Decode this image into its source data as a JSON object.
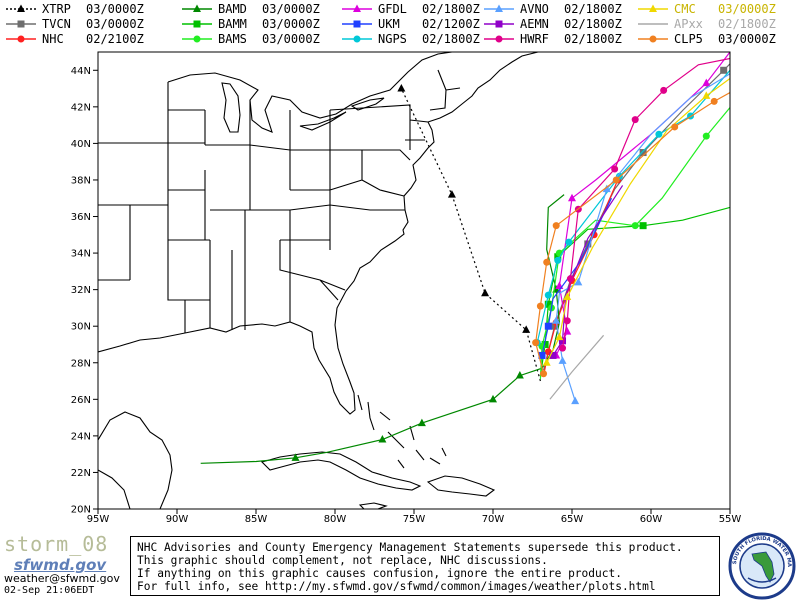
{
  "legend": [
    {
      "name": "XTRP",
      "date": "03/0000Z",
      "color": "#000000",
      "marker": "tri",
      "dash": true
    },
    {
      "name": "TVCN",
      "date": "03/0000Z",
      "color": "#6e6e6e",
      "marker": "square",
      "dash": false
    },
    {
      "name": "NHC",
      "date": "02/2100Z",
      "color": "#ff2020",
      "marker": "circle",
      "dash": false
    },
    {
      "name": "BAMD",
      "date": "03/0000Z",
      "color": "#008800",
      "marker": "tri",
      "dash": false
    },
    {
      "name": "BAMM",
      "date": "03/0000Z",
      "color": "#00c000",
      "marker": "square",
      "dash": false
    },
    {
      "name": "BAMS",
      "date": "03/0000Z",
      "color": "#22ee22",
      "marker": "circle",
      "dash": false
    },
    {
      "name": "GFDL",
      "date": "02/1800Z",
      "color": "#dd00dd",
      "marker": "tri",
      "dash": false
    },
    {
      "name": "UKM",
      "date": "02/1200Z",
      "color": "#2040ff",
      "marker": "square",
      "dash": false
    },
    {
      "name": "NGPS",
      "date": "02/1800Z",
      "color": "#00c8d8",
      "marker": "circle",
      "dash": false
    },
    {
      "name": "AVNO",
      "date": "02/1800Z",
      "color": "#5aa0ff",
      "marker": "tri",
      "dash": false
    },
    {
      "name": "AEMN",
      "date": "02/1800Z",
      "color": "#9000c8",
      "marker": "square",
      "dash": false
    },
    {
      "name": "HWRF",
      "date": "02/1800Z",
      "color": "#e0008a",
      "marker": "circle",
      "dash": false
    },
    {
      "name": "CMC",
      "date": "03/0000Z",
      "color": "#f0d800",
      "marker": "tri",
      "dash": false
    },
    {
      "name": "APxx",
      "date": "02/1800Z",
      "color": "#a8a8a8",
      "marker": "none",
      "dash": false
    },
    {
      "name": "CLP5",
      "date": "03/0000Z",
      "color": "#f08020",
      "marker": "circle",
      "dash": false
    }
  ],
  "axes": {
    "lon_labels": [
      "95W",
      "90W",
      "85W",
      "80W",
      "75W",
      "70W",
      "65W",
      "60W",
      "55W"
    ],
    "lat_labels": [
      "20N",
      "22N",
      "24N",
      "26N",
      "28N",
      "30N",
      "32N",
      "34N",
      "36N",
      "38N",
      "40N",
      "42N",
      "44N"
    ]
  },
  "footer": {
    "storm_id": "storm_08",
    "logo_text": "sfwmd.gov",
    "email": "weather@sfwmd.gov",
    "timestamp": "02-Sep 21:06EDT",
    "disclaimer": [
      "NHC Advisories and County Emergency Management Statements supersede this product.",
      "This graphic should complement, not replace, NHC discussions.",
      "If anything on this graphic causes confusion, ignore the entire product.",
      "For full info, see  http://my.sfwmd.gov/sfwmd/common/images/weather/plots.html"
    ],
    "seal_text": "SOUTH FLORIDA WATER MANAGEMENT DISTRICT"
  },
  "tracks": {
    "XTRP": [
      [
        -67.0,
        27.0
      ],
      [
        -67.9,
        29.8
      ],
      [
        -70.5,
        31.8
      ],
      [
        -72.6,
        37.2
      ],
      [
        -75.8,
        43.0
      ]
    ],
    "TVCN": [
      [
        -66.8,
        27.6
      ],
      [
        -66.1,
        30.0
      ],
      [
        -65.1,
        32.5
      ],
      [
        -64.0,
        34.5
      ],
      [
        -62.3,
        37.5
      ],
      [
        -60.5,
        39.5
      ],
      [
        -58.0,
        41.8
      ],
      [
        -55.4,
        44.0
      ],
      [
        -54.5,
        44.8
      ]
    ],
    "NHC": [
      [
        -66.8,
        27.3
      ],
      [
        -66.5,
        28.6
      ],
      [
        -66.0,
        30.2
      ],
      [
        -65.0,
        32.5
      ],
      [
        -63.6,
        35.0
      ],
      [
        -62.1,
        38.0
      ]
    ],
    "BAMD": [
      [
        -88.5,
        22.5
      ],
      [
        -85.0,
        22.6
      ],
      [
        -82.5,
        22.8
      ],
      [
        -80.5,
        23.1
      ],
      [
        -77.0,
        23.8
      ],
      [
        -74.5,
        24.7
      ],
      [
        -70.0,
        26.0
      ],
      [
        -68.3,
        27.3
      ],
      [
        -66.9,
        27.7
      ],
      [
        -66.2,
        28.7
      ],
      [
        -65.8,
        30.2
      ],
      [
        -66.0,
        32.0
      ],
      [
        -66.6,
        34.2
      ],
      [
        -66.5,
        36.5
      ],
      [
        -65.5,
        37.2
      ]
    ],
    "BAMM": [
      [
        -67.0,
        27.3
      ],
      [
        -66.7,
        29.0
      ],
      [
        -66.5,
        31.2
      ],
      [
        -65.9,
        33.8
      ],
      [
        -64.0,
        35.3
      ],
      [
        -60.5,
        35.5
      ],
      [
        -58.0,
        35.8
      ],
      [
        -55.0,
        36.5
      ],
      [
        -50.0,
        39.5
      ]
    ],
    "BAMS": [
      [
        -67.0,
        27.1
      ],
      [
        -66.9,
        28.9
      ],
      [
        -66.3,
        31.0
      ],
      [
        -65.8,
        34.0
      ],
      [
        -63.5,
        35.8
      ],
      [
        -61.0,
        35.5
      ],
      [
        -59.3,
        37.0
      ],
      [
        -56.5,
        40.4
      ],
      [
        -54.0,
        43.0
      ]
    ],
    "GFDL": [
      [
        -66.0,
        28.4
      ],
      [
        -65.3,
        29.7
      ],
      [
        -65.8,
        32.2
      ],
      [
        -65.0,
        37.0
      ],
      [
        -63.5,
        38.0
      ],
      [
        -60.0,
        40.5
      ],
      [
        -56.5,
        43.3
      ],
      [
        -55.0,
        45.0
      ]
    ],
    "UKM": [
      [
        -66.9,
        28.4
      ],
      [
        -66.5,
        30.0
      ],
      [
        -66.2,
        31.5
      ],
      [
        -64.5,
        33.5
      ],
      [
        -62.5,
        37.0
      ]
    ],
    "NGPS": [
      [
        -67.2,
        29.1
      ],
      [
        -66.5,
        31.7
      ],
      [
        -65.9,
        33.6
      ],
      [
        -65.2,
        34.6
      ],
      [
        -62.0,
        38.2
      ],
      [
        -59.5,
        40.5
      ],
      [
        -57.5,
        41.5
      ],
      [
        -55.0,
        44.0
      ],
      [
        -52.0,
        45.0
      ]
    ],
    "AVNO": [
      [
        -64.8,
        25.9
      ],
      [
        -65.6,
        28.1
      ],
      [
        -66.0,
        30.3
      ],
      [
        -65.8,
        31.8
      ],
      [
        -64.6,
        32.4
      ],
      [
        -62.8,
        37.5
      ],
      [
        -60.0,
        40.5
      ],
      [
        -57.5,
        42.5
      ],
      [
        -55.2,
        43.7
      ],
      [
        -53.0,
        45.0
      ]
    ],
    "AEMN": [
      [
        -66.2,
        28.4
      ],
      [
        -65.6,
        29.2
      ],
      [
        -65.4,
        31.7
      ],
      [
        -64.0,
        34.8
      ],
      [
        -61.8,
        37.7
      ]
    ],
    "HWRF": [
      [
        -65.6,
        28.8
      ],
      [
        -65.3,
        30.3
      ],
      [
        -65.1,
        32.6
      ],
      [
        -64.6,
        36.4
      ],
      [
        -62.3,
        38.6
      ],
      [
        -61.0,
        41.3
      ],
      [
        -59.2,
        42.9
      ],
      [
        -57.0,
        44.3
      ],
      [
        -53.5,
        44.9
      ]
    ],
    "CMC": [
      [
        -66.6,
        28.0
      ],
      [
        -65.8,
        29.4
      ],
      [
        -65.3,
        31.6
      ],
      [
        -63.7,
        34.3
      ],
      [
        -61.3,
        37.8
      ],
      [
        -59.0,
        40.7
      ],
      [
        -56.5,
        42.6
      ],
      [
        -53.5,
        44.5
      ]
    ],
    "APxx": [
      [
        -66.4,
        26.0
      ],
      [
        -65.0,
        27.5
      ],
      [
        -63.0,
        29.5
      ]
    ],
    "CLP5": [
      [
        -66.8,
        27.4
      ],
      [
        -67.3,
        29.1
      ],
      [
        -67.0,
        31.1
      ],
      [
        -66.6,
        33.5
      ],
      [
        -66.0,
        35.5
      ],
      [
        -62.2,
        38.0
      ],
      [
        -58.5,
        40.9
      ],
      [
        -56.0,
        42.3
      ],
      [
        -53.5,
        43.5
      ]
    ]
  },
  "marker_index": {
    "XTRP": [
      1,
      2,
      3,
      4
    ],
    "TVCN": [
      1,
      3,
      5,
      7
    ],
    "NHC": [
      1,
      2,
      3,
      4,
      5
    ],
    "BAMD": [
      2,
      4,
      5,
      6,
      7,
      11
    ],
    "BAMM": [
      1,
      2,
      3,
      5
    ],
    "BAMS": [
      1,
      2,
      3,
      5,
      7
    ],
    "GFDL": [
      0,
      1,
      2,
      3,
      6
    ],
    "UKM": [
      0,
      1
    ],
    "NGPS": [
      0,
      1,
      2,
      3,
      4,
      5,
      6
    ],
    "AVNO": [
      0,
      1,
      2,
      4,
      5
    ],
    "AEMN": [
      0,
      1
    ],
    "HWRF": [
      0,
      1,
      2,
      3,
      4,
      5,
      6
    ],
    "CMC": [
      0,
      1,
      2,
      6
    ],
    "APxx": [],
    "CLP5": [
      0,
      1,
      2,
      3,
      4,
      5,
      6,
      7
    ]
  }
}
